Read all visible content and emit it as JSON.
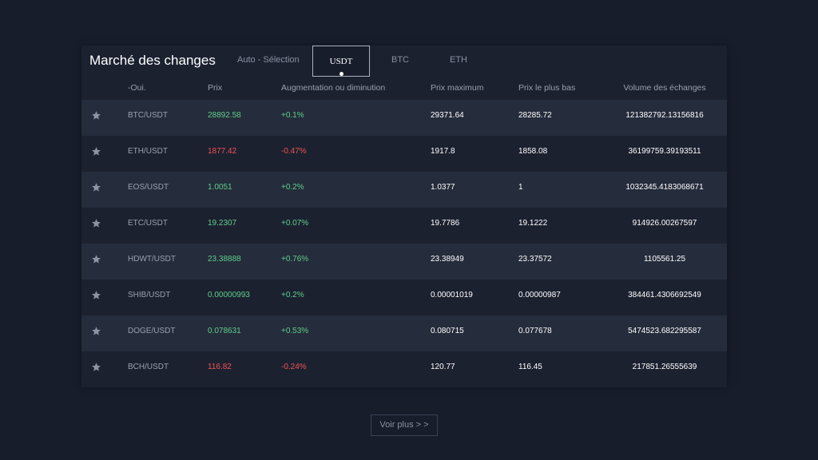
{
  "header": {
    "title": "Marché des changes",
    "tabs": {
      "auto": "Auto - Sélection",
      "usdt": "USDT",
      "btc": "BTC",
      "eth": "ETH"
    },
    "active_tab": "USDT"
  },
  "columns": {
    "name": "-Oui.",
    "price": "Prix",
    "change": "Augmentation ou diminution",
    "high": "Prix maximum",
    "low": "Prix le plus bas",
    "volume": "Volume des échanges"
  },
  "rows": [
    {
      "pair": "BTC/USDT",
      "price": "28892.58",
      "change": "+0.1%",
      "high": "29371.64",
      "low": "28285.72",
      "volume": "121382792.13156816",
      "trend": "up"
    },
    {
      "pair": "ETH/USDT",
      "price": "1877.42",
      "change": "-0.47%",
      "high": "1917.8",
      "low": "1858.08",
      "volume": "36199759.39193511",
      "trend": "down"
    },
    {
      "pair": "EOS/USDT",
      "price": "1.0051",
      "change": "+0.2%",
      "high": "1.0377",
      "low": "1",
      "volume": "1032345.4183068671",
      "trend": "up"
    },
    {
      "pair": "ETC/USDT",
      "price": "19.2307",
      "change": "+0.07%",
      "high": "19.7786",
      "low": "19.1222",
      "volume": "914926.00267597",
      "trend": "up"
    },
    {
      "pair": "HDWT/USDT",
      "price": "23.38888",
      "change": "+0.76%",
      "high": "23.38949",
      "low": "23.37572",
      "volume": "1105561.25",
      "trend": "up"
    },
    {
      "pair": "SHIB/USDT",
      "price": "0.00000993",
      "change": "+0.2%",
      "high": "0.00001019",
      "low": "0.00000987",
      "volume": "384461.4306692549",
      "trend": "up"
    },
    {
      "pair": "DOGE/USDT",
      "price": "0.078631",
      "change": "+0.53%",
      "high": "0.080715",
      "low": "0.077678",
      "volume": "5474523.682295587",
      "trend": "up"
    },
    {
      "pair": "BCH/USDT",
      "price": "116.82",
      "change": "-0.24%",
      "high": "120.77",
      "low": "116.45",
      "volume": "217851.26555639",
      "trend": "down"
    }
  ],
  "footer": {
    "more_label": "Voir plus > >"
  },
  "colors": {
    "background": "#181d2c",
    "panel": "#1c2130",
    "row_alt": "#252c3b",
    "up": "#5fcf8a",
    "down": "#f05250",
    "star": "#8e93a3"
  },
  "icons": {
    "favorite": "star-icon"
  }
}
